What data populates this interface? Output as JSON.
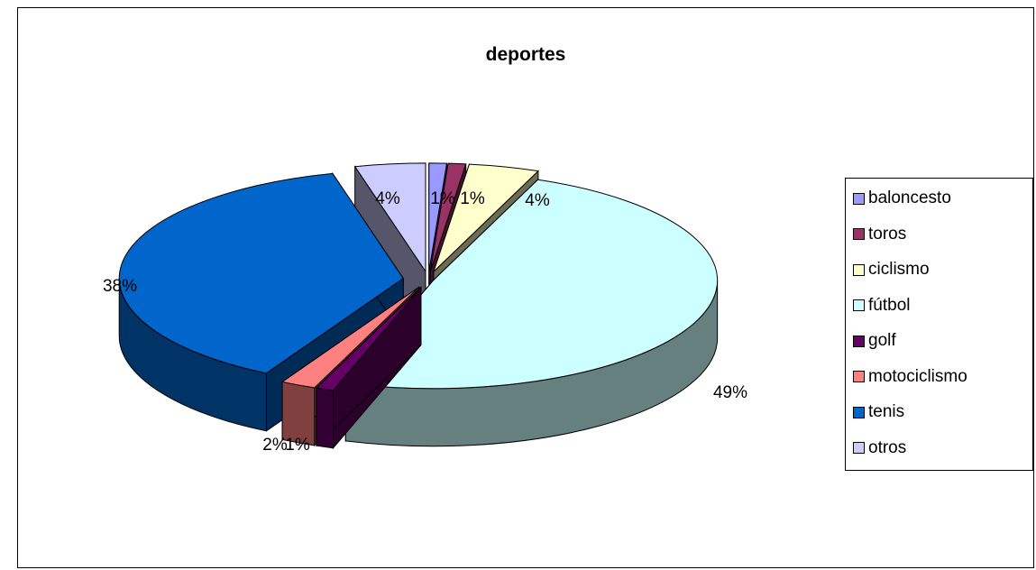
{
  "chart_data": {
    "type": "pie",
    "title": "deportes",
    "categories": [
      "baloncesto",
      "toros",
      "ciclismo",
      "fútbol",
      "golf",
      "motociclismo",
      "tenis",
      "otros"
    ],
    "values": [
      1,
      1,
      4,
      49,
      1,
      2,
      38,
      4
    ],
    "value_labels": [
      "1%",
      "1%",
      "4%",
      "49%",
      "1%",
      "2%",
      "38%",
      "4%"
    ],
    "colors": [
      "#9999FF",
      "#993366",
      "#FFFFCC",
      "#CCFFFF",
      "#660066",
      "#FF8080",
      "#0066CC",
      "#CCCCFF"
    ],
    "exploded": true,
    "three_d": true,
    "legend": "right"
  }
}
